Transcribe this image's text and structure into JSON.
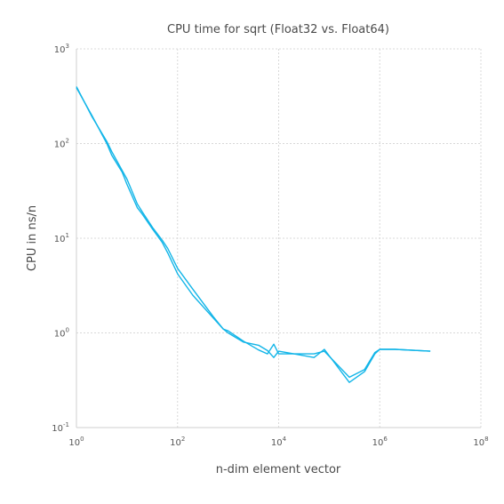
{
  "chart_data": {
    "type": "line",
    "title": "CPU time for sqrt (Float32 vs. Float64)",
    "xlabel": "n-dim element vector",
    "ylabel": "CPU in ns/n",
    "x_scale": "log10",
    "y_scale": "log10",
    "xlim": [
      1,
      100000000
    ],
    "ylim": [
      0.1,
      1000
    ],
    "x_tick_exponents": [
      "0",
      "2",
      "4",
      "6",
      "8"
    ],
    "y_tick_exponents": [
      "-1",
      "0",
      "1",
      "2",
      "3"
    ],
    "tick_base": "10",
    "grid": true,
    "legend": "none",
    "series_color": "#12b5e8",
    "series": [
      {
        "x": [
          1,
          2,
          4,
          5,
          8,
          10,
          16,
          20,
          32,
          50,
          64,
          100,
          200,
          500,
          800,
          1000,
          2000,
          4000,
          6000,
          8000,
          10000,
          20000,
          50000,
          80000,
          250000,
          500000,
          800000,
          1000000,
          2000000,
          10000000
        ],
        "y": [
          400,
          195,
          105,
          82,
          52,
          42,
          23,
          19,
          13,
          9.5,
          7.8,
          4.8,
          2.9,
          1.5,
          1.1,
          1.05,
          0.82,
          0.66,
          0.6,
          0.76,
          0.6,
          0.6,
          0.6,
          0.64,
          0.34,
          0.41,
          0.62,
          0.67,
          0.67,
          0.64
        ]
      },
      {
        "x": [
          1,
          2,
          4,
          5,
          8,
          10,
          16,
          20,
          32,
          50,
          64,
          100,
          200,
          500,
          800,
          1000,
          2000,
          4000,
          6000,
          8000,
          10000,
          20000,
          50000,
          80000,
          250000,
          500000,
          800000,
          1000000,
          2000000,
          10000000
        ],
        "y": [
          390,
          200,
          100,
          75,
          50,
          37,
          21,
          18,
          12.5,
          9,
          7,
          4.2,
          2.5,
          1.45,
          1.1,
          1.0,
          0.8,
          0.74,
          0.65,
          0.55,
          0.64,
          0.6,
          0.55,
          0.67,
          0.3,
          0.39,
          0.6,
          0.67,
          0.67,
          0.64
        ]
      }
    ]
  }
}
